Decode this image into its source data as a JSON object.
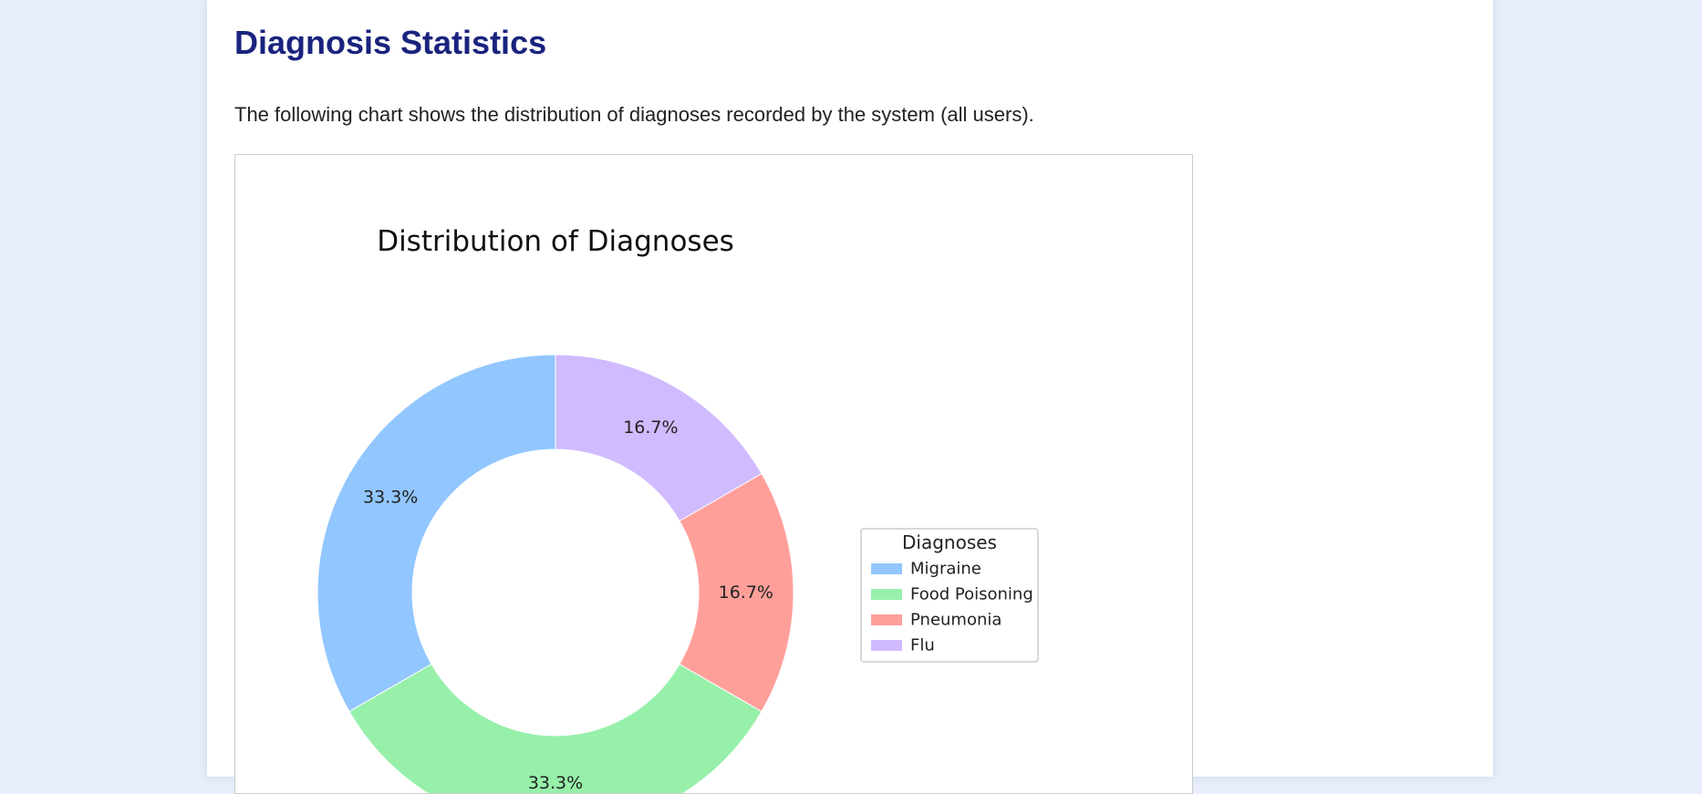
{
  "page": {
    "title": "Diagnosis Statistics",
    "description": "The following chart shows the distribution of diagnoses recorded by the system (all users)."
  },
  "chart_data": {
    "type": "pie",
    "title": "Distribution of Diagnoses",
    "legend_title": "Diagnoses",
    "legend_position": "right",
    "donut": true,
    "start_angle_deg": 90,
    "direction": "counterclockwise",
    "categories": [
      "Migraine",
      "Food Poisoning",
      "Pneumonia",
      "Flu"
    ],
    "values": [
      2,
      2,
      1,
      1
    ],
    "percent_labels": [
      "33.3%",
      "33.3%",
      "16.7%",
      "16.7%"
    ],
    "colors": [
      "#92c6ff",
      "#97f0aa",
      "#ff9f9a",
      "#d0bbff"
    ]
  }
}
